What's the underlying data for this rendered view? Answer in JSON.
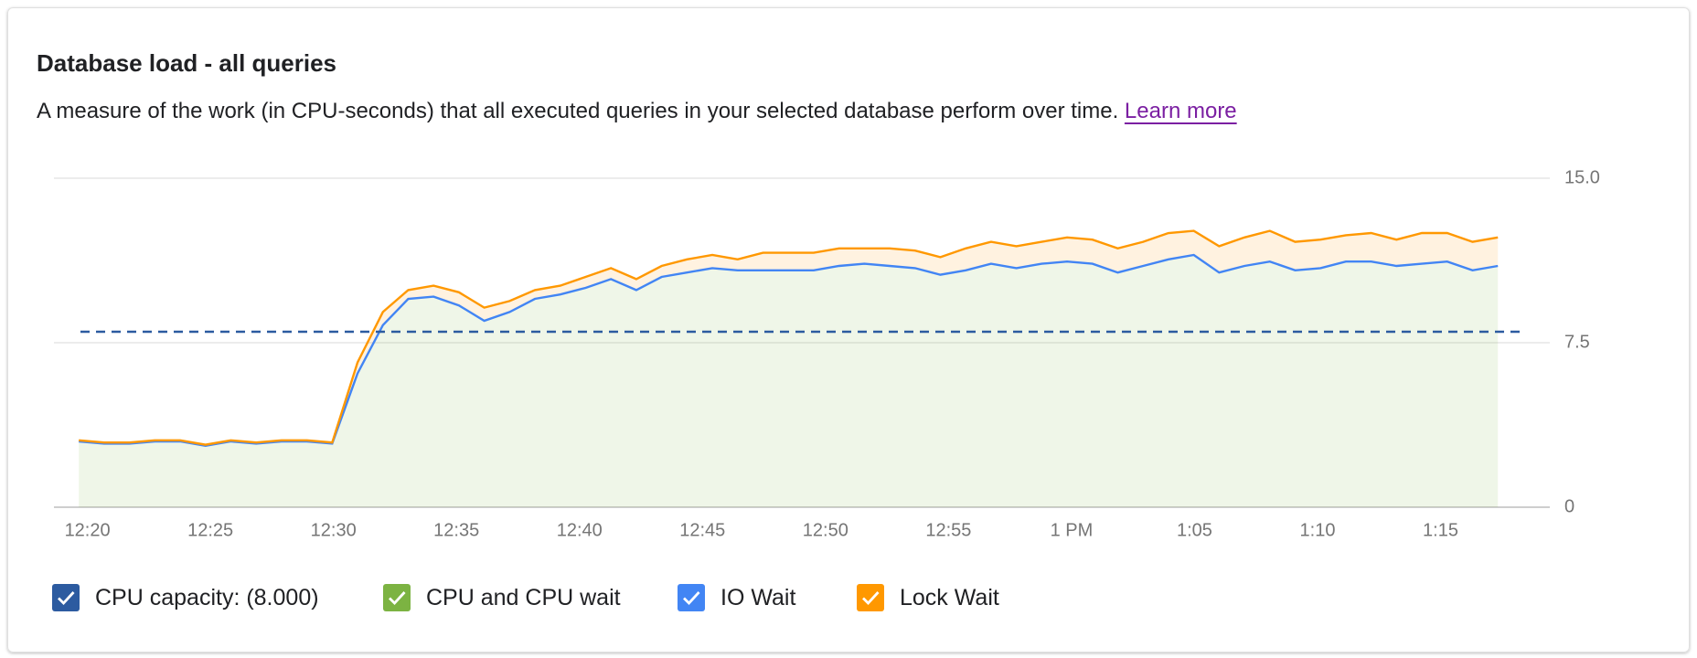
{
  "header": {
    "title": "Database load - all queries",
    "description": "A measure of the work (in CPU-seconds) that all executed queries in your selected database perform over time.",
    "link": "Learn more"
  },
  "chart_data": {
    "type": "stacked-area",
    "x": [
      19.65,
      20.68,
      21.71,
      22.74,
      23.77,
      24.8,
      25.83,
      26.86,
      27.89,
      28.92,
      29.95,
      30.98,
      32.01,
      33.04,
      34.07,
      35.1,
      36.13,
      37.16,
      38.19,
      39.22,
      40.25,
      41.28,
      42.31,
      43.34,
      44.37,
      45.4,
      46.43,
      47.46,
      48.49,
      49.52,
      50.55,
      51.58,
      52.61,
      53.64,
      54.67,
      55.7,
      56.73,
      57.76,
      58.79,
      59.82,
      60.85,
      61.88,
      62.91,
      63.94,
      64.97,
      66.0,
      67.03,
      68.06,
      69.09,
      70.12,
      71.15,
      72.18,
      73.21,
      74.24,
      75.27,
      76.3,
      77.33
    ],
    "xlim": [
      18.64,
      79.44
    ],
    "xticks": [
      {
        "value": 20,
        "label": "12:20"
      },
      {
        "value": 25,
        "label": "12:25"
      },
      {
        "value": 30,
        "label": "12:30"
      },
      {
        "value": 35,
        "label": "12:35"
      },
      {
        "value": 40,
        "label": "12:40"
      },
      {
        "value": 45,
        "label": "12:45"
      },
      {
        "value": 50,
        "label": "12:50"
      },
      {
        "value": 55,
        "label": "12:55"
      },
      {
        "value": 60,
        "label": "1 PM"
      },
      {
        "value": 65,
        "label": "1:05"
      },
      {
        "value": 70,
        "label": "1:10"
      },
      {
        "value": 75,
        "label": "1:15"
      }
    ],
    "ylim": [
      0,
      15
    ],
    "yticks": [
      0,
      7.5,
      {
        "value": 15,
        "label": "15.0"
      }
    ],
    "grid": true,
    "capacity": {
      "name": "CPU capacity: (8.000)",
      "value": 8,
      "color": "#2c5ba0"
    },
    "series": [
      {
        "name": "CPU and CPU wait",
        "color": "#7cb342",
        "values": [
          3.0,
          2.9,
          2.9,
          3.0,
          3.0,
          2.8,
          3.0,
          2.9,
          3.0,
          3.0,
          2.9,
          6.1,
          8.3,
          9.5,
          9.6,
          9.2,
          8.5,
          8.9,
          9.5,
          9.7,
          10.0,
          10.4,
          9.9,
          10.5,
          10.7,
          10.9,
          10.8,
          10.8,
          10.8,
          10.8,
          11.0,
          11.1,
          11.0,
          10.9,
          10.6,
          10.8,
          11.1,
          10.9,
          11.1,
          11.2,
          11.1,
          10.7,
          11.0,
          11.3,
          11.5,
          10.7,
          11.0,
          11.2,
          10.8,
          10.9,
          11.2,
          11.2,
          11.0,
          11.1,
          11.2,
          10.8,
          11.0
        ]
      },
      {
        "name": "IO Wait",
        "color": "#4285f4",
        "values": [
          0,
          0,
          0,
          0,
          0,
          0,
          0,
          0,
          0,
          0,
          0,
          0,
          0,
          0,
          0,
          0,
          0,
          0,
          0,
          0,
          0,
          0,
          0,
          0,
          0,
          0,
          0,
          0,
          0,
          0,
          0,
          0,
          0,
          0,
          0,
          0,
          0,
          0,
          0,
          0,
          0,
          0,
          0,
          0,
          0,
          0,
          0,
          0,
          0,
          0,
          0,
          0,
          0,
          0,
          0,
          0,
          0
        ]
      },
      {
        "name": "Lock Wait",
        "color": "#ff9800",
        "values": [
          0.05,
          0.05,
          0.05,
          0.05,
          0.05,
          0.05,
          0.05,
          0.05,
          0.05,
          0.05,
          0.05,
          0.5,
          0.6,
          0.4,
          0.5,
          0.6,
          0.6,
          0.5,
          0.4,
          0.4,
          0.5,
          0.5,
          0.5,
          0.5,
          0.6,
          0.6,
          0.5,
          0.8,
          0.8,
          0.8,
          0.8,
          0.7,
          0.8,
          0.8,
          0.8,
          1.0,
          1.0,
          1.0,
          1.0,
          1.1,
          1.1,
          1.1,
          1.1,
          1.2,
          1.1,
          1.2,
          1.3,
          1.4,
          1.3,
          1.3,
          1.2,
          1.3,
          1.2,
          1.4,
          1.3,
          1.3,
          1.3
        ]
      }
    ]
  }
}
